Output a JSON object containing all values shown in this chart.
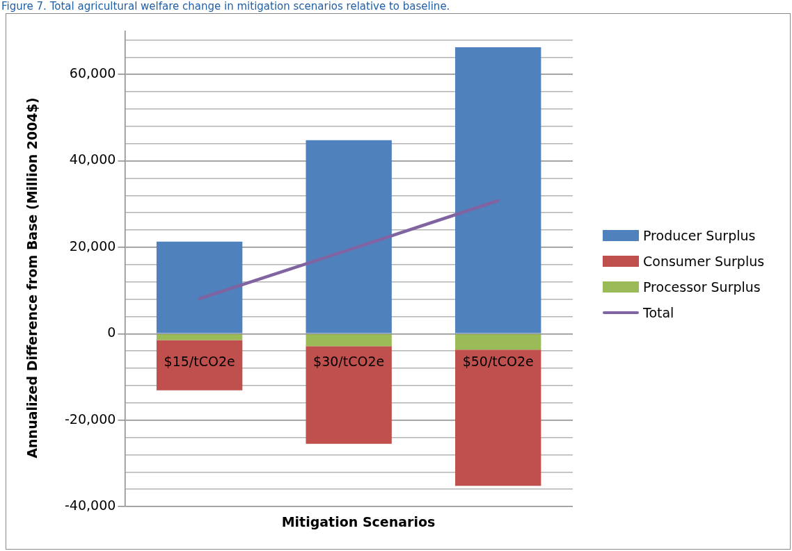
{
  "chart_data": {
    "type": "bar",
    "stacked": true,
    "title": "Figure 7. Total agricultural welfare change in mitigation scenarios relative to baseline.",
    "xlabel": "Mitigation Scenarios",
    "ylabel": "Annualized Difference from Base (Million 2004$)",
    "categories": [
      "$15/tCO2e",
      "$30/tCO2e",
      "$50/tCO2e"
    ],
    "series": [
      {
        "name": "Processor Surplus",
        "color": "#9bbb59",
        "values": [
          -1500,
          -2900,
          -3700
        ]
      },
      {
        "name": "Consumer Surplus",
        "color": "#c0504d",
        "values": [
          -11600,
          -22600,
          -31500
        ]
      },
      {
        "name": "Producer Surplus",
        "color": "#4f81bd",
        "values": [
          21300,
          44800,
          66300
        ]
      },
      {
        "name": "Total",
        "type": "line",
        "color": "#8064a2",
        "values": [
          8100,
          19400,
          30800
        ]
      }
    ],
    "ylim": [
      -40000,
      70000
    ],
    "yticks": [
      {
        "value": -40000,
        "label": "-40,000"
      },
      {
        "value": -36000,
        "label": null
      },
      {
        "value": -32000,
        "label": null
      },
      {
        "value": -28000,
        "label": null
      },
      {
        "value": -24000,
        "label": null
      },
      {
        "value": -20000,
        "label": "-20,000"
      },
      {
        "value": -16000,
        "label": null
      },
      {
        "value": -12000,
        "label": null
      },
      {
        "value": -8000,
        "label": null
      },
      {
        "value": -4000,
        "label": null
      },
      0,
      {
        "value": 4000,
        "label": null
      },
      {
        "value": 8000,
        "label": null
      },
      {
        "value": 12000,
        "label": null
      },
      {
        "value": 16000,
        "label": null
      },
      {
        "value": 20000,
        "label": "20,000"
      },
      {
        "value": 24000,
        "label": null
      },
      {
        "value": 28000,
        "label": null
      },
      {
        "value": 32000,
        "label": null
      },
      {
        "value": 36000,
        "label": null
      },
      {
        "value": 40000,
        "label": "40,000"
      },
      {
        "value": 44000,
        "label": null
      },
      {
        "value": 48000,
        "label": null
      },
      {
        "value": 52000,
        "label": null
      },
      {
        "value": 56000,
        "label": null
      },
      {
        "value": 60000,
        "label": "60,000"
      },
      {
        "value": 64000,
        "label": null
      },
      {
        "value": 68000,
        "label": null
      }
    ],
    "grid": "y",
    "legend": "right",
    "marker": "none"
  }
}
